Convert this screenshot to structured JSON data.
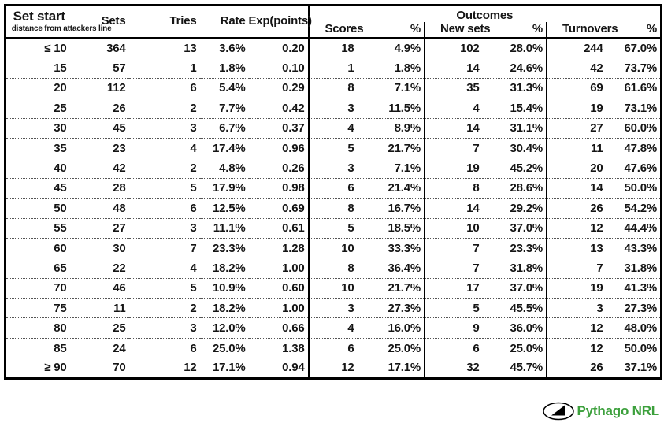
{
  "chart_data": {
    "type": "table",
    "header": {
      "set_start": "Set start",
      "set_start_sub": "distance from attackers line",
      "sets": "Sets",
      "tries": "Tries",
      "rate": "Rate",
      "exp_points": "Exp(points)",
      "outcomes_group": "Outcomes",
      "scores": "Scores",
      "scores_pct": "%",
      "new_sets": "New sets",
      "new_sets_pct": "%",
      "turnovers": "Turnovers",
      "turnovers_pct": "%"
    },
    "rows": [
      {
        "set_start": "≤ 10",
        "sets": "364",
        "tries": "13",
        "rate": "3.6%",
        "exp": "0.20",
        "scores": "18",
        "scores_pct": "4.9%",
        "new_sets": "102",
        "new_sets_pct": "28.0%",
        "turnovers": "244",
        "turnovers_pct": "67.0%"
      },
      {
        "set_start": "15",
        "sets": "57",
        "tries": "1",
        "rate": "1.8%",
        "exp": "0.10",
        "scores": "1",
        "scores_pct": "1.8%",
        "new_sets": "14",
        "new_sets_pct": "24.6%",
        "turnovers": "42",
        "turnovers_pct": "73.7%"
      },
      {
        "set_start": "20",
        "sets": "112",
        "tries": "6",
        "rate": "5.4%",
        "exp": "0.29",
        "scores": "8",
        "scores_pct": "7.1%",
        "new_sets": "35",
        "new_sets_pct": "31.3%",
        "turnovers": "69",
        "turnovers_pct": "61.6%"
      },
      {
        "set_start": "25",
        "sets": "26",
        "tries": "2",
        "rate": "7.7%",
        "exp": "0.42",
        "scores": "3",
        "scores_pct": "11.5%",
        "new_sets": "4",
        "new_sets_pct": "15.4%",
        "turnovers": "19",
        "turnovers_pct": "73.1%"
      },
      {
        "set_start": "30",
        "sets": "45",
        "tries": "3",
        "rate": "6.7%",
        "exp": "0.37",
        "scores": "4",
        "scores_pct": "8.9%",
        "new_sets": "14",
        "new_sets_pct": "31.1%",
        "turnovers": "27",
        "turnovers_pct": "60.0%"
      },
      {
        "set_start": "35",
        "sets": "23",
        "tries": "4",
        "rate": "17.4%",
        "exp": "0.96",
        "scores": "5",
        "scores_pct": "21.7%",
        "new_sets": "7",
        "new_sets_pct": "30.4%",
        "turnovers": "11",
        "turnovers_pct": "47.8%"
      },
      {
        "set_start": "40",
        "sets": "42",
        "tries": "2",
        "rate": "4.8%",
        "exp": "0.26",
        "scores": "3",
        "scores_pct": "7.1%",
        "new_sets": "19",
        "new_sets_pct": "45.2%",
        "turnovers": "20",
        "turnovers_pct": "47.6%"
      },
      {
        "set_start": "45",
        "sets": "28",
        "tries": "5",
        "rate": "17.9%",
        "exp": "0.98",
        "scores": "6",
        "scores_pct": "21.4%",
        "new_sets": "8",
        "new_sets_pct": "28.6%",
        "turnovers": "14",
        "turnovers_pct": "50.0%"
      },
      {
        "set_start": "50",
        "sets": "48",
        "tries": "6",
        "rate": "12.5%",
        "exp": "0.69",
        "scores": "8",
        "scores_pct": "16.7%",
        "new_sets": "14",
        "new_sets_pct": "29.2%",
        "turnovers": "26",
        "turnovers_pct": "54.2%"
      },
      {
        "set_start": "55",
        "sets": "27",
        "tries": "3",
        "rate": "11.1%",
        "exp": "0.61",
        "scores": "5",
        "scores_pct": "18.5%",
        "new_sets": "10",
        "new_sets_pct": "37.0%",
        "turnovers": "12",
        "turnovers_pct": "44.4%"
      },
      {
        "set_start": "60",
        "sets": "30",
        "tries": "7",
        "rate": "23.3%",
        "exp": "1.28",
        "scores": "10",
        "scores_pct": "33.3%",
        "new_sets": "7",
        "new_sets_pct": "23.3%",
        "turnovers": "13",
        "turnovers_pct": "43.3%"
      },
      {
        "set_start": "65",
        "sets": "22",
        "tries": "4",
        "rate": "18.2%",
        "exp": "1.00",
        "scores": "8",
        "scores_pct": "36.4%",
        "new_sets": "7",
        "new_sets_pct": "31.8%",
        "turnovers": "7",
        "turnovers_pct": "31.8%"
      },
      {
        "set_start": "70",
        "sets": "46",
        "tries": "5",
        "rate": "10.9%",
        "exp": "0.60",
        "scores": "10",
        "scores_pct": "21.7%",
        "new_sets": "17",
        "new_sets_pct": "37.0%",
        "turnovers": "19",
        "turnovers_pct": "41.3%"
      },
      {
        "set_start": "75",
        "sets": "11",
        "tries": "2",
        "rate": "18.2%",
        "exp": "1.00",
        "scores": "3",
        "scores_pct": "27.3%",
        "new_sets": "5",
        "new_sets_pct": "45.5%",
        "turnovers": "3",
        "turnovers_pct": "27.3%"
      },
      {
        "set_start": "80",
        "sets": "25",
        "tries": "3",
        "rate": "12.0%",
        "exp": "0.66",
        "scores": "4",
        "scores_pct": "16.0%",
        "new_sets": "9",
        "new_sets_pct": "36.0%",
        "turnovers": "12",
        "turnovers_pct": "48.0%"
      },
      {
        "set_start": "85",
        "sets": "24",
        "tries": "6",
        "rate": "25.0%",
        "exp": "1.38",
        "scores": "6",
        "scores_pct": "25.0%",
        "new_sets": "6",
        "new_sets_pct": "25.0%",
        "turnovers": "12",
        "turnovers_pct": "50.0%"
      },
      {
        "set_start": "≥ 90",
        "sets": "70",
        "tries": "12",
        "rate": "17.1%",
        "exp": "0.94",
        "scores": "12",
        "scores_pct": "17.1%",
        "new_sets": "32",
        "new_sets_pct": "45.7%",
        "turnovers": "26",
        "turnovers_pct": "37.1%"
      }
    ]
  },
  "footer": {
    "brand": "Pythago NRL"
  },
  "colors": {
    "brand_green": "#3ca03c",
    "text": "#151515",
    "border": "#000000"
  }
}
